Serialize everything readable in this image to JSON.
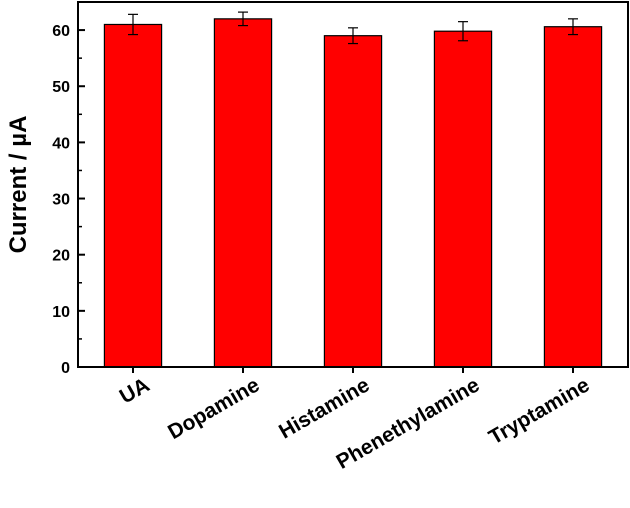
{
  "chart_data": {
    "type": "bar",
    "title": "",
    "xlabel": "",
    "ylabel": "Current / µA",
    "categories": [
      "UA",
      "Dopamine",
      "Histamine",
      "Phenethylamine",
      "Tryptamine"
    ],
    "series": [
      {
        "values": [
          61.0,
          62.0,
          59.0,
          59.8,
          60.6
        ],
        "errors": [
          1.8,
          1.2,
          1.4,
          1.7,
          1.4
        ],
        "color": "#ff0000"
      }
    ],
    "ylim": [
      0,
      65
    ],
    "yticks": [
      0,
      10,
      20,
      30,
      40,
      50,
      60
    ],
    "ytick_labels": [
      "0",
      "10",
      "20",
      "30",
      "40",
      "50",
      "60"
    ],
    "grid": false,
    "legend": "none"
  }
}
